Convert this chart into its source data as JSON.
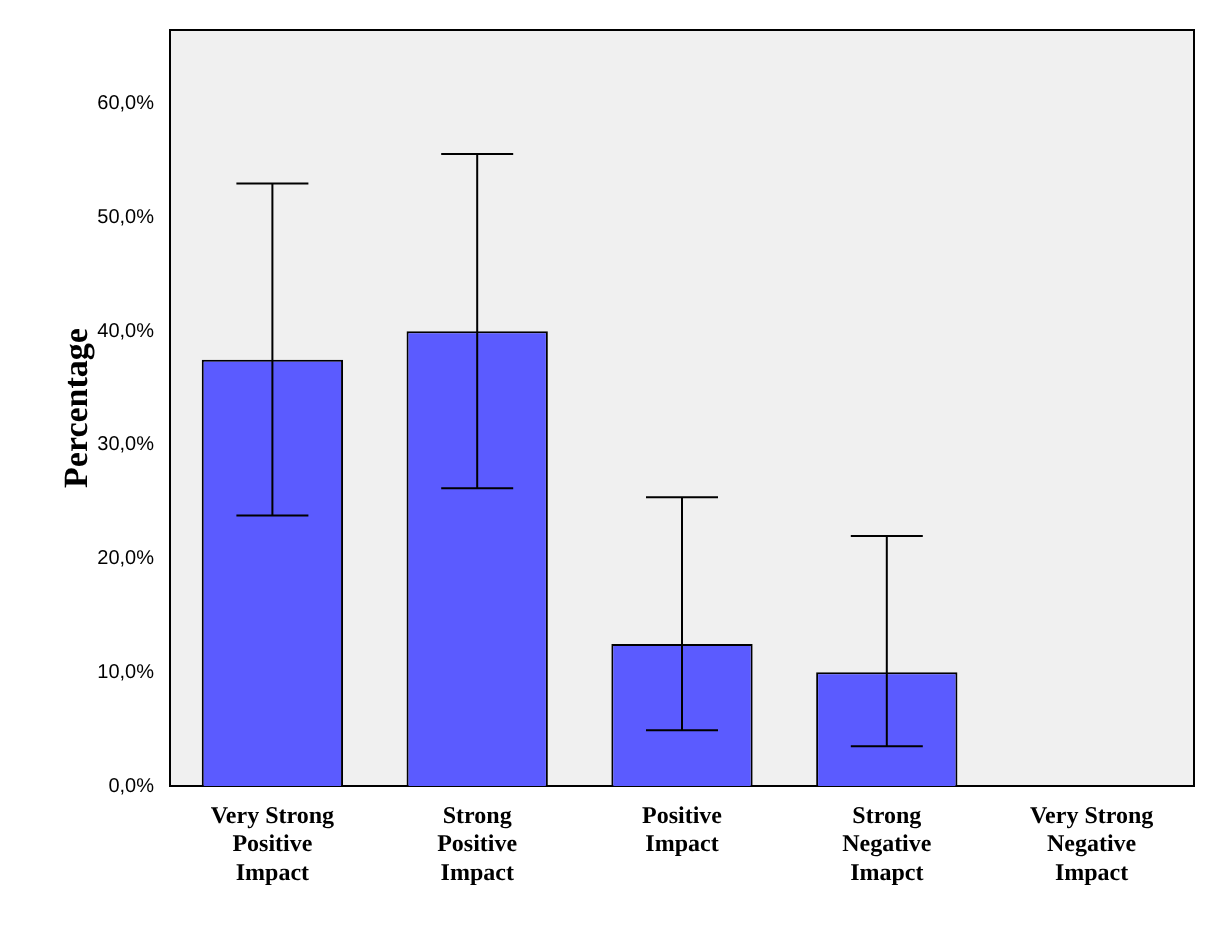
{
  "chart_data": {
    "type": "bar",
    "ylabel": "Percentage",
    "categories": [
      "Very Strong Positive Impact",
      "Strong Positive Impact",
      "Positive Impact",
      "Strong Negative Imapct",
      "Very Strong Negative Impact"
    ],
    "values": [
      37.5,
      40.0,
      12.5,
      10.0,
      0
    ],
    "errors": [
      [
        23.8,
        53.0
      ],
      [
        26.2,
        55.6
      ],
      [
        4.9,
        25.4
      ],
      [
        3.5,
        22.0
      ],
      null
    ],
    "color": "#5b5bff",
    "ylim": [
      0,
      66.5
    ],
    "yticks": [
      {
        "value": 0,
        "label": "0,0%"
      },
      {
        "value": 10,
        "label": "10,0%"
      },
      {
        "value": 20,
        "label": "20,0%"
      },
      {
        "value": 30,
        "label": "30,0%"
      },
      {
        "value": 40,
        "label": "40,0%"
      },
      {
        "value": 50,
        "label": "50,0%"
      },
      {
        "value": 60,
        "label": "60,0%"
      }
    ],
    "grid": false,
    "legend": false
  }
}
